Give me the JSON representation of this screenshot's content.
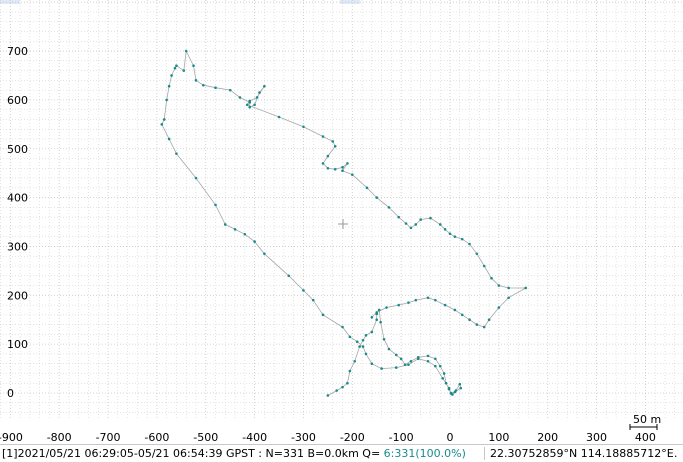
{
  "plot": {
    "x_ticks": [
      "-900",
      "-800",
      "-700",
      "-600",
      "-500",
      "-400",
      "-300",
      "-200",
      "-100",
      "0",
      "100",
      "200",
      "300",
      "400"
    ],
    "y_ticks": [
      "0",
      "100",
      "200",
      "300",
      "400",
      "500",
      "600",
      "700"
    ],
    "scale_label": "50 m",
    "colors": {
      "grid": "#c8c8c8",
      "track": "#a6a6a6",
      "point": "#1a8b8b",
      "axis_text": "#000000"
    },
    "track_points": [
      [
        -250,
        -5
      ],
      [
        -232,
        5
      ],
      [
        -220,
        12
      ],
      [
        -210,
        20
      ],
      [
        -205,
        45
      ],
      [
        -195,
        65
      ],
      [
        -185,
        95
      ],
      [
        -178,
        108
      ],
      [
        -172,
        118
      ],
      [
        -160,
        125
      ],
      [
        -150,
        150
      ],
      [
        -150,
        162
      ],
      [
        -145,
        170
      ],
      [
        -142,
        145
      ],
      [
        -135,
        110
      ],
      [
        -125,
        90
      ],
      [
        -110,
        78
      ],
      [
        -100,
        70
      ],
      [
        -92,
        58
      ],
      [
        -80,
        65
      ],
      [
        -65,
        73
      ],
      [
        -45,
        76
      ],
      [
        -30,
        70
      ],
      [
        -20,
        55
      ],
      [
        -12,
        40
      ],
      [
        -8,
        20
      ],
      [
        -2,
        8
      ],
      [
        2,
        -1
      ],
      [
        5,
        -3
      ],
      [
        12,
        5
      ],
      [
        20,
        18
      ],
      [
        22,
        10
      ],
      [
        10,
        2
      ],
      [
        2,
        0
      ],
      [
        -2,
        10
      ],
      [
        -15,
        30
      ],
      [
        -30,
        55
      ],
      [
        -45,
        65
      ],
      [
        -65,
        70
      ],
      [
        -85,
        58
      ],
      [
        -110,
        52
      ],
      [
        -140,
        50
      ],
      [
        -160,
        60
      ],
      [
        -172,
        80
      ],
      [
        -178,
        95
      ],
      [
        -190,
        105
      ],
      [
        -205,
        115
      ],
      [
        -220,
        135
      ],
      [
        -260,
        160
      ],
      [
        -280,
        190
      ],
      [
        -300,
        210
      ],
      [
        -330,
        240
      ],
      [
        -380,
        285
      ],
      [
        -400,
        310
      ],
      [
        -420,
        325
      ],
      [
        -440,
        335
      ],
      [
        -460,
        345
      ],
      [
        -480,
        385
      ],
      [
        -520,
        440
      ],
      [
        -560,
        490
      ],
      [
        -575,
        520
      ],
      [
        -590,
        550
      ],
      [
        -585,
        560
      ],
      [
        -580,
        600
      ],
      [
        -575,
        628
      ],
      [
        -570,
        650
      ],
      [
        -563,
        665
      ],
      [
        -560,
        670
      ],
      [
        -545,
        660
      ],
      [
        -540,
        700
      ],
      [
        -525,
        670
      ],
      [
        -520,
        640
      ],
      [
        -505,
        630
      ],
      [
        -480,
        625
      ],
      [
        -450,
        620
      ],
      [
        -430,
        605
      ],
      [
        -410,
        595
      ],
      [
        -410,
        585
      ],
      [
        -400,
        590
      ],
      [
        -390,
        615
      ],
      [
        -380,
        628
      ],
      [
        -395,
        605
      ],
      [
        -410,
        598
      ],
      [
        -415,
        590
      ],
      [
        -350,
        565
      ],
      [
        -300,
        545
      ],
      [
        -260,
        525
      ],
      [
        -240,
        515
      ],
      [
        -235,
        505
      ],
      [
        -250,
        485
      ],
      [
        -260,
        470
      ],
      [
        -250,
        460
      ],
      [
        -235,
        458
      ],
      [
        -220,
        462
      ],
      [
        -210,
        470
      ],
      [
        -220,
        455
      ],
      [
        -200,
        447
      ],
      [
        -170,
        420
      ],
      [
        -150,
        400
      ],
      [
        -125,
        380
      ],
      [
        -105,
        360
      ],
      [
        -90,
        347
      ],
      [
        -80,
        338
      ],
      [
        -70,
        345
      ],
      [
        -60,
        355
      ],
      [
        -40,
        358
      ],
      [
        -20,
        345
      ],
      [
        -10,
        335
      ],
      [
        0,
        326
      ],
      [
        10,
        320
      ],
      [
        25,
        315
      ],
      [
        40,
        305
      ],
      [
        55,
        285
      ],
      [
        70,
        260
      ],
      [
        85,
        235
      ],
      [
        100,
        220
      ],
      [
        120,
        215
      ],
      [
        155,
        215
      ],
      [
        120,
        195
      ],
      [
        100,
        175
      ],
      [
        80,
        150
      ],
      [
        70,
        135
      ],
      [
        55,
        140
      ],
      [
        40,
        150
      ],
      [
        25,
        160
      ],
      [
        10,
        170
      ],
      [
        -10,
        180
      ],
      [
        -30,
        190
      ],
      [
        -45,
        195
      ],
      [
        -70,
        190
      ],
      [
        -85,
        185
      ],
      [
        -105,
        180
      ],
      [
        -130,
        175
      ],
      [
        -150,
        165
      ],
      [
        -160,
        155
      ]
    ]
  },
  "status": {
    "left": "[1]2021/05/21 06:29:05-05/21 06:54:39 GPST : N=331 B=0.0km Q= ",
    "quality": "6:331(100.0%)",
    "right": "22.30752859°N  114.18885712°E",
    "corner": "."
  }
}
